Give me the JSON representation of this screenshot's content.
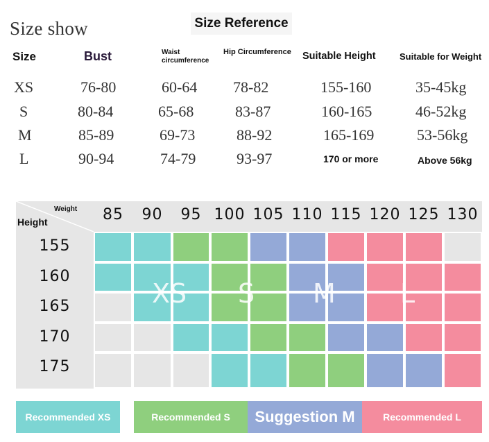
{
  "header": {
    "size_show": "Size show",
    "title": "Size Reference"
  },
  "table": {
    "columns": {
      "size": "Size",
      "bust": "Bust",
      "waist": "Waist circumference",
      "hip": "Hip Circumference",
      "height": "Suitable Height",
      "weight": "Suitable for Weight"
    },
    "rows": [
      {
        "size": "XS",
        "bust": "76-80",
        "waist": "60-64",
        "hip": "78-82",
        "height": "155-160",
        "weight": "35-45kg"
      },
      {
        "size": "S",
        "bust": "80-84",
        "waist": "65-68",
        "hip": "83-87",
        "height": "160-165",
        "weight": "46-52kg"
      },
      {
        "size": "M",
        "bust": "85-89",
        "waist": "69-73",
        "hip": "88-92",
        "height": "165-169",
        "weight": "53-56kg"
      },
      {
        "size": "L",
        "bust": "90-94",
        "waist": "74-79",
        "hip": "93-97",
        "height": "170 or more",
        "weight": "Above 56kg"
      }
    ]
  },
  "grid": {
    "corner_weight": "Weight",
    "corner_height": "Height",
    "weights": [
      "85",
      "90",
      "95",
      "100",
      "105",
      "110",
      "115",
      "120",
      "125",
      "130"
    ],
    "heights": [
      "155",
      "160",
      "165",
      "170",
      "175"
    ],
    "zones": [
      "XS",
      "S",
      "M",
      "L"
    ],
    "cells": [
      [
        "XS",
        "XS",
        "S",
        "S",
        "M",
        "M",
        "L",
        "L",
        "L",
        "none"
      ],
      [
        "XS",
        "XS",
        "XS",
        "S",
        "S",
        "M",
        "M",
        "L",
        "L",
        "L"
      ],
      [
        "none",
        "XS",
        "XS",
        "S",
        "S",
        "M",
        "M",
        "L",
        "L",
        "L"
      ],
      [
        "none",
        "none",
        "XS",
        "XS",
        "S",
        "S",
        "M",
        "M",
        "L",
        "L"
      ],
      [
        "none",
        "none",
        "none",
        "XS",
        "XS",
        "S",
        "S",
        "M",
        "M",
        "L"
      ]
    ],
    "colors": {
      "XS": "#7dd5d3",
      "S": "#8fcf7e",
      "M": "#94a9d7",
      "L": "#f48c9e",
      "none": "#e6e6e6"
    }
  },
  "legend": [
    {
      "label": "Recommended XS",
      "color": "#7dd5d3"
    },
    {
      "label": "Recommended S",
      "color": "#8fcf7e"
    },
    {
      "label": "Suggestion M",
      "color": "#94a9d7"
    },
    {
      "label": "Recommended L",
      "color": "#f48c9e"
    }
  ]
}
